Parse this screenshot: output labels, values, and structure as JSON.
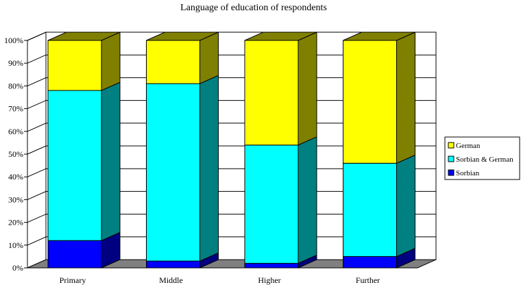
{
  "chart_data": {
    "type": "bar",
    "stacked": true,
    "percent": true,
    "three_d": true,
    "title": "Language of education of respondents",
    "categories": [
      "Primary",
      "Middle",
      "Higher",
      "Further"
    ],
    "series": [
      {
        "name": "Sorbian",
        "values": [
          12,
          3,
          2,
          5
        ],
        "color": "#0000ff",
        "side_color": "#000080"
      },
      {
        "name": "Sorbian & German",
        "values": [
          66,
          78,
          52,
          41
        ],
        "color": "#00ffff",
        "side_color": "#008080"
      },
      {
        "name": "German",
        "values": [
          22,
          19,
          46,
          54
        ],
        "color": "#ffff00",
        "side_color": "#808000"
      }
    ],
    "y_ticks": [
      "0%",
      "10%",
      "20%",
      "30%",
      "40%",
      "50%",
      "60%",
      "70%",
      "80%",
      "90%",
      "100%"
    ],
    "ylim": [
      0,
      100
    ],
    "grid": true,
    "legend_position": "right",
    "legend_order": [
      "German",
      "Sorbian & German",
      "Sorbian"
    ]
  }
}
